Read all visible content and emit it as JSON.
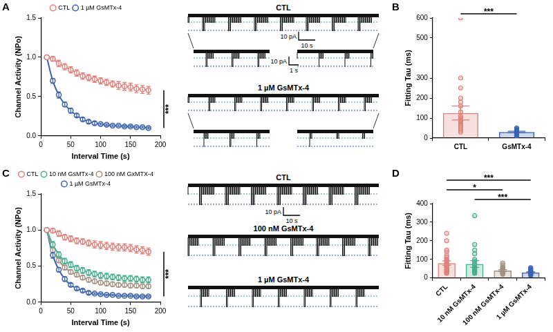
{
  "chart_data": [
    {
      "panel": "A",
      "type": "line",
      "x": [
        10,
        20,
        30,
        40,
        50,
        60,
        70,
        80,
        90,
        100,
        110,
        120,
        130,
        140,
        150,
        160,
        170,
        180
      ],
      "xlim": [
        0,
        200
      ],
      "xticks": [
        0,
        50,
        100,
        150,
        200
      ],
      "ylim": [
        0,
        1.5
      ],
      "yticks": [
        {
          "value": 0,
          "label": "0.0"
        },
        {
          "value": 0.5,
          "label": "0.5"
        },
        {
          "value": 1,
          "label": "1.0"
        },
        {
          "value": 1.5,
          "label": "1.5"
        }
      ],
      "x_label": "Interval Time (s)",
      "y_label": "Channel Activity (NPo)",
      "legend": "top",
      "grid": false,
      "marker": "circle_open",
      "line_style": "solid",
      "series": [
        {
          "name": "CTL",
          "color": "#e0817c",
          "values": [
            1.0,
            0.98,
            0.92,
            0.88,
            0.84,
            0.8,
            0.76,
            0.74,
            0.72,
            0.7,
            0.68,
            0.66,
            0.64,
            0.63,
            0.62,
            0.6,
            0.59,
            0.58
          ],
          "errors": [
            0,
            0.03,
            0.04,
            0.04,
            0.04,
            0.04,
            0.04,
            0.04,
            0.04,
            0.04,
            0.04,
            0.04,
            0.05,
            0.05,
            0.05,
            0.05,
            0.05,
            0.05
          ]
        },
        {
          "name": "1 µM GsMTx-4",
          "color": "#3b63b0",
          "values": [
            1.0,
            0.7,
            0.52,
            0.4,
            0.32,
            0.26,
            0.21,
            0.18,
            0.16,
            0.15,
            0.14,
            0.13,
            0.13,
            0.12,
            0.12,
            0.11,
            0.11,
            0.1
          ],
          "errors": [
            0,
            0.03,
            0.04,
            0.03,
            0.03,
            0.02,
            0.02,
            0.02,
            0.02,
            0.01,
            0.01,
            0.01,
            0.01,
            0.01,
            0.01,
            0.01,
            0.01,
            0.01
          ]
        }
      ],
      "significance": [
        {
          "series": [
            0,
            1
          ],
          "label": "***"
        }
      ]
    },
    {
      "panel": "B",
      "type": "bar",
      "categories": [
        "CTL",
        "GsMTx-4"
      ],
      "values": [
        125,
        30
      ],
      "errors": [
        35,
        4
      ],
      "points": [
        [
          600,
          300,
          250,
          200,
          180,
          160,
          130,
          110,
          100,
          90,
          85,
          80,
          70,
          60,
          50,
          40,
          30
        ],
        [
          50,
          45,
          40,
          38,
          35,
          32,
          30,
          28,
          25,
          22,
          20,
          18,
          15,
          12,
          10
        ]
      ],
      "colors": [
        "#e0817c",
        "#3b63b0"
      ],
      "ylim": [
        0,
        600
      ],
      "yticks": [
        0,
        100,
        200,
        300,
        500,
        600
      ],
      "y_label": "Fitting Tau (ms)",
      "grid": false,
      "significance": [
        {
          "from": 0,
          "to": 1,
          "label": "***"
        }
      ]
    },
    {
      "panel": "C",
      "type": "line",
      "x": [
        10,
        20,
        30,
        40,
        50,
        60,
        70,
        80,
        90,
        100,
        110,
        120,
        130,
        140,
        150,
        160,
        170,
        180
      ],
      "xlim": [
        0,
        200
      ],
      "xticks": [
        0,
        50,
        100,
        150,
        200
      ],
      "ylim": [
        0,
        1.5
      ],
      "yticks": [
        {
          "value": 0,
          "label": "0.0"
        },
        {
          "value": 0.5,
          "label": "0.5"
        },
        {
          "value": 1,
          "label": "1.0"
        },
        {
          "value": 1.5,
          "label": "1.5"
        }
      ],
      "x_label": "Interval Time (s)",
      "y_label": "Channel Activity (NPo)",
      "legend": "top",
      "grid": false,
      "marker": "circle_open",
      "line_style": "solid",
      "series": [
        {
          "name": "CTL",
          "color": "#e0817c",
          "values": [
            1.0,
            0.99,
            0.95,
            0.9,
            0.88,
            0.85,
            0.84,
            0.82,
            0.8,
            0.79,
            0.78,
            0.77,
            0.76,
            0.76,
            0.75,
            0.73,
            0.72,
            0.7
          ],
          "errors": [
            0,
            0.03,
            0.04,
            0.04,
            0.04,
            0.04,
            0.04,
            0.04,
            0.05,
            0.05,
            0.05,
            0.05,
            0.05,
            0.05,
            0.05,
            0.05,
            0.05,
            0.05
          ]
        },
        {
          "name": "10 nM GsMTx-4",
          "color": "#45b08c",
          "values": [
            1.0,
            0.8,
            0.66,
            0.57,
            0.52,
            0.47,
            0.44,
            0.41,
            0.39,
            0.37,
            0.36,
            0.35,
            0.34,
            0.33,
            0.33,
            0.32,
            0.31,
            0.31
          ],
          "errors": [
            0,
            0.04,
            0.04,
            0.04,
            0.04,
            0.04,
            0.04,
            0.04,
            0.04,
            0.04,
            0.04,
            0.04,
            0.04,
            0.04,
            0.04,
            0.04,
            0.04,
            0.04
          ]
        },
        {
          "name": "100 nM GxMTX-4",
          "color": "#a39080",
          "values": [
            1.0,
            0.72,
            0.58,
            0.48,
            0.42,
            0.38,
            0.34,
            0.31,
            0.29,
            0.27,
            0.26,
            0.25,
            0.24,
            0.24,
            0.23,
            0.23,
            0.22,
            0.22
          ],
          "errors": [
            0,
            0.03,
            0.03,
            0.03,
            0.03,
            0.03,
            0.03,
            0.03,
            0.03,
            0.03,
            0.03,
            0.03,
            0.03,
            0.03,
            0.03,
            0.03,
            0.03,
            0.03
          ]
        },
        {
          "name": "1 µM GsMTx-4",
          "color": "#3b63b0",
          "values": [
            1.0,
            0.65,
            0.45,
            0.32,
            0.24,
            0.19,
            0.16,
            0.13,
            0.12,
            0.11,
            0.1,
            0.1,
            0.09,
            0.09,
            0.09,
            0.08,
            0.08,
            0.08
          ],
          "errors": [
            0,
            0.04,
            0.03,
            0.03,
            0.02,
            0.02,
            0.02,
            0.02,
            0.01,
            0.01,
            0.01,
            0.01,
            0.01,
            0.01,
            0.01,
            0.01,
            0.01,
            0.01
          ]
        }
      ],
      "significance": [
        {
          "series": [
            0,
            3
          ],
          "label": "***"
        }
      ]
    },
    {
      "panel": "D",
      "type": "bar",
      "categories": [
        "CTL",
        "10 nM GsMTx-4",
        "100 nM GsMTx-4",
        "1 µM GsMTx-4"
      ],
      "values": [
        80,
        75,
        40,
        30
      ],
      "errors": [
        12,
        18,
        5,
        3
      ],
      "points": [
        [
          240,
          200,
          150,
          140,
          120,
          110,
          100,
          95,
          90,
          80,
          75,
          70,
          65,
          60,
          55,
          50,
          45,
          40,
          35,
          30,
          25
        ],
        [
          335,
          180,
          150,
          130,
          100,
          90,
          80,
          70,
          60,
          55,
          50,
          45,
          40,
          35,
          30,
          25
        ],
        [
          80,
          70,
          60,
          55,
          50,
          45,
          40,
          35,
          30,
          28,
          25,
          20
        ],
        [
          55,
          50,
          45,
          40,
          38,
          35,
          30,
          28,
          25,
          22,
          20,
          18,
          15
        ]
      ],
      "colors": [
        "#e0817c",
        "#45b08c",
        "#a39080",
        "#3b63b0"
      ],
      "ylim": [
        0,
        400
      ],
      "yticks": [
        0,
        100,
        200,
        300,
        400
      ],
      "y_label": "Fitting Tau (ms)",
      "grid": false,
      "significance": [
        {
          "from": 1,
          "to": 3,
          "label": "***"
        },
        {
          "from": 0,
          "to": 2,
          "label": "*"
        },
        {
          "from": 0,
          "to": 3,
          "label": "***"
        }
      ]
    }
  ],
  "traces": [
    {
      "panel": "A",
      "rows": [
        {
          "label": "CTL",
          "scale": [
            "10 pA",
            "10 s"
          ],
          "zoom_scale": [
            "10 pA",
            "1 s"
          ]
        },
        {
          "label": "1 µM GsMTx-4"
        }
      ]
    },
    {
      "panel": "C",
      "rows": [
        {
          "label": "CTL",
          "scale": [
            "10 pA",
            "10 s"
          ]
        },
        {
          "label": "100 nM GsMTx-4"
        },
        {
          "label": "1 µM GsMTx-4"
        }
      ]
    }
  ]
}
